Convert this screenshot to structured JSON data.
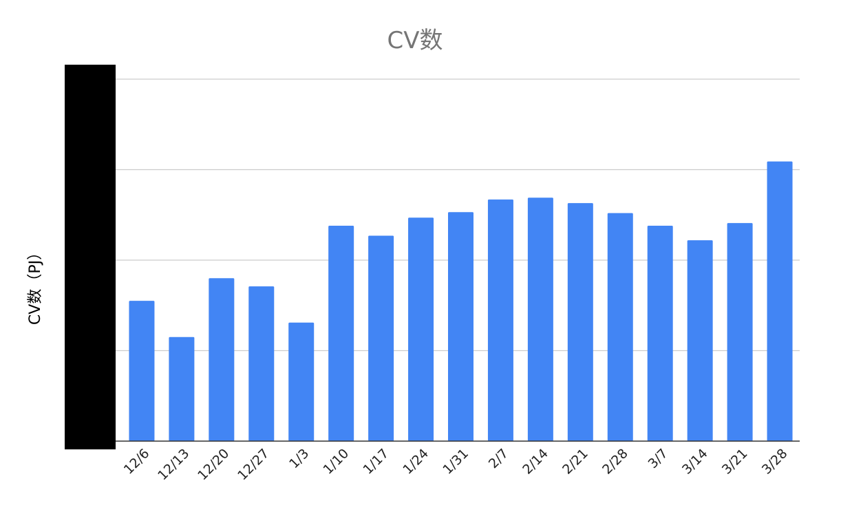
{
  "chart_data": {
    "type": "bar",
    "title": "CV数",
    "ylabel": "CV数（PJ）",
    "xlabel": "",
    "categories": [
      "12/6",
      "12/13",
      "12/20",
      "12/27",
      "1/3",
      "1/10",
      "1/17",
      "1/24",
      "1/31",
      "2/7",
      "2/14",
      "2/21",
      "2/28",
      "3/7",
      "3/14",
      "3/21",
      "3/28"
    ],
    "values": [
      1.55,
      1.15,
      1.8,
      1.71,
      1.31,
      2.38,
      2.27,
      2.47,
      2.53,
      2.67,
      2.69,
      2.63,
      2.52,
      2.38,
      2.22,
      2.41,
      3.09
    ],
    "ylim": [
      0,
      4
    ],
    "y_tick_count": 4,
    "grid": true,
    "legend": "none",
    "bar_color": "#4285F4",
    "redacted_y_tick_labels": true
  }
}
